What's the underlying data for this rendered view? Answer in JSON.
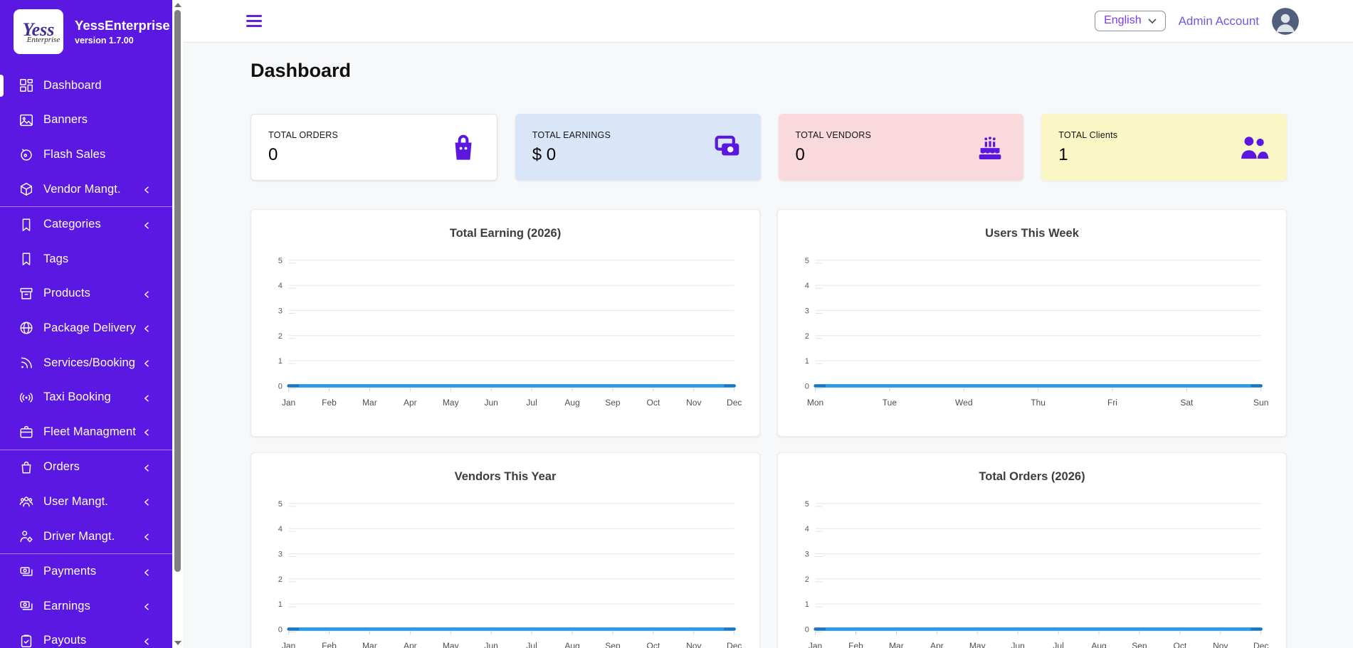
{
  "brand": {
    "name": "YessEnterprise",
    "version": "version 1.7.00",
    "logo_line1": "Yess",
    "logo_line2": "Enterprise"
  },
  "topbar": {
    "language": "English",
    "account": "Admin Account"
  },
  "page": {
    "title": "Dashboard"
  },
  "sidebar": {
    "items": [
      {
        "label": "Dashboard",
        "icon": "dashboard-icon",
        "active": true,
        "chevron": false,
        "divider_after": false
      },
      {
        "label": "Banners",
        "icon": "image-icon",
        "active": false,
        "chevron": false,
        "divider_after": false
      },
      {
        "label": "Flash Sales",
        "icon": "flash-icon",
        "active": false,
        "chevron": false,
        "divider_after": false
      },
      {
        "label": "Vendor Mangt.",
        "icon": "vendor-box-icon",
        "active": false,
        "chevron": true,
        "divider_after": true
      },
      {
        "label": "Categories",
        "icon": "bookmark-icon",
        "active": false,
        "chevron": true,
        "divider_after": false
      },
      {
        "label": "Tags",
        "icon": "bookmark-icon",
        "active": false,
        "chevron": false,
        "divider_after": false
      },
      {
        "label": "Products",
        "icon": "archive-icon",
        "active": false,
        "chevron": true,
        "divider_after": false
      },
      {
        "label": "Package Delivery",
        "icon": "globe-icon",
        "active": false,
        "chevron": true,
        "divider_after": false
      },
      {
        "label": "Services/Booking",
        "icon": "rss-icon",
        "active": false,
        "chevron": true,
        "divider_after": false
      },
      {
        "label": "Taxi Booking",
        "icon": "broadcast-icon",
        "active": false,
        "chevron": true,
        "divider_after": false
      },
      {
        "label": "Fleet Managment",
        "icon": "briefcase-icon",
        "active": false,
        "chevron": true,
        "divider_after": true
      },
      {
        "label": "Orders",
        "icon": "shopping-bag-outline-icon",
        "active": false,
        "chevron": true,
        "divider_after": false
      },
      {
        "label": "User Mangt.",
        "icon": "users-group-icon",
        "active": false,
        "chevron": true,
        "divider_after": false
      },
      {
        "label": "Driver Mangt.",
        "icon": "person-gear-icon",
        "active": false,
        "chevron": true,
        "divider_after": true
      },
      {
        "label": "Payments",
        "icon": "banknotes-icon",
        "active": false,
        "chevron": true,
        "divider_after": false
      },
      {
        "label": "Earnings",
        "icon": "banknotes-icon",
        "active": false,
        "chevron": true,
        "divider_after": false
      },
      {
        "label": "Payouts",
        "icon": "clipboard-check-icon",
        "active": false,
        "chevron": true,
        "divider_after": false
      }
    ]
  },
  "stats": [
    {
      "label": "TOTAL ORDERS",
      "value": "0",
      "icon": "shopping-bag-icon",
      "bg": "#ffffff"
    },
    {
      "label": "TOTAL EARNINGS",
      "value": "$ 0",
      "icon": "cash-icon",
      "bg": "#d9e6f8"
    },
    {
      "label": "TOTAL VENDORS",
      "value": "0",
      "icon": "cake-icon",
      "bg": "#fad9dd"
    },
    {
      "label": "TOTAL Clients",
      "value": "1",
      "icon": "people-icon",
      "bg": "#fbf6c5"
    }
  ],
  "chart_data": [
    {
      "type": "line",
      "title": "Total Earning (2026)",
      "categories": [
        "Jan",
        "Feb",
        "Mar",
        "Apr",
        "May",
        "Jun",
        "Jul",
        "Aug",
        "Sep",
        "Oct",
        "Nov",
        "Dec"
      ],
      "values": [
        0,
        0,
        0,
        0,
        0,
        0,
        0,
        0,
        0,
        0,
        0,
        0
      ],
      "ylim": [
        0,
        5
      ],
      "yticks": [
        0,
        1,
        2,
        3,
        4,
        5
      ],
      "xlabel": "",
      "ylabel": "",
      "grid": true,
      "legend": false,
      "line_color": "#2d9bec",
      "line_edge_color": "#1a78c2"
    },
    {
      "type": "line",
      "title": "Users This Week",
      "categories": [
        "Mon",
        "Tue",
        "Wed",
        "Thu",
        "Fri",
        "Sat",
        "Sun"
      ],
      "values": [
        0,
        0,
        0,
        0,
        0,
        0,
        0
      ],
      "ylim": [
        0,
        5
      ],
      "yticks": [
        0,
        1,
        2,
        3,
        4,
        5
      ],
      "xlabel": "",
      "ylabel": "",
      "grid": true,
      "legend": false,
      "line_color": "#2d9bec",
      "line_edge_color": "#1a78c2"
    },
    {
      "type": "line",
      "title": "Vendors This Year",
      "categories": [
        "Jan",
        "Feb",
        "Mar",
        "Apr",
        "May",
        "Jun",
        "Jul",
        "Aug",
        "Sep",
        "Oct",
        "Nov",
        "Dec"
      ],
      "values": [
        0,
        0,
        0,
        0,
        0,
        0,
        0,
        0,
        0,
        0,
        0,
        0
      ],
      "ylim": [
        0,
        5
      ],
      "yticks": [
        0,
        1,
        2,
        3,
        4,
        5
      ],
      "xlabel": "",
      "ylabel": "",
      "grid": true,
      "legend": false,
      "line_color": "#2d9bec",
      "line_edge_color": "#1a78c2"
    },
    {
      "type": "line",
      "title": "Total Orders (2026)",
      "categories": [
        "Jan",
        "Feb",
        "Mar",
        "Apr",
        "May",
        "Jun",
        "Jul",
        "Aug",
        "Sep",
        "Oct",
        "Nov",
        "Dec"
      ],
      "values": [
        0,
        0,
        0,
        0,
        0,
        0,
        0,
        0,
        0,
        0,
        0,
        0
      ],
      "ylim": [
        0,
        5
      ],
      "yticks": [
        0,
        1,
        2,
        3,
        4,
        5
      ],
      "xlabel": "",
      "ylabel": "",
      "grid": true,
      "legend": false,
      "line_color": "#2d9bec",
      "line_edge_color": "#1a78c2"
    }
  ],
  "colors": {
    "sidebar_bg": "#5a18e2",
    "accent_purple": "#5b17e0",
    "link_purple": "#6d5ae0",
    "chart_line": "#2d9bec",
    "gridline": "#e8e8e8"
  }
}
